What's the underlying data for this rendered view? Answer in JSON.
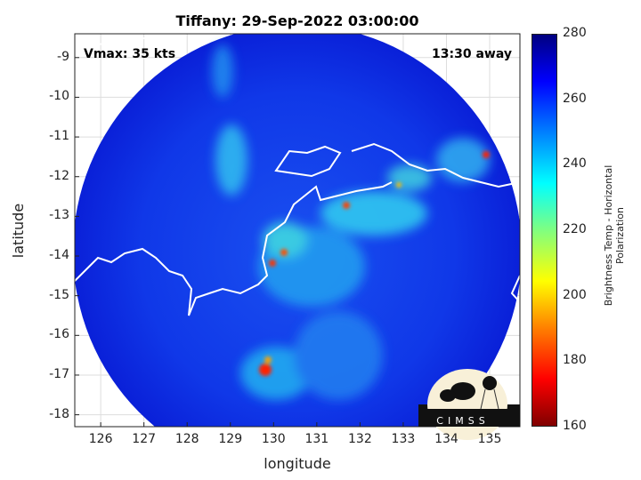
{
  "title": "Tiffany: 29-Sep-2022 03:00:00",
  "annotations": {
    "vmax": "Vmax: 35 kts",
    "distance": "13:30 away"
  },
  "xaxis": {
    "label": "longitude",
    "ticks": [
      "126",
      "127",
      "128",
      "129",
      "130",
      "131",
      "132",
      "133",
      "134",
      "135"
    ],
    "range": [
      125.4,
      135.7
    ]
  },
  "yaxis": {
    "label": "latitude",
    "ticks": [
      "-9",
      "-10",
      "-11",
      "-12",
      "-13",
      "-14",
      "-15",
      "-16",
      "-17",
      "-18"
    ],
    "range": [
      -18.3,
      -8.4
    ]
  },
  "colorbar": {
    "label": "Brightness Temp - Horizontal Polarization",
    "ticks": [
      "280",
      "260",
      "240",
      "220",
      "200",
      "180",
      "160"
    ],
    "range": [
      160,
      280
    ],
    "colormap": "jet"
  },
  "logo": {
    "text": "CIMSS"
  },
  "colors": {
    "background_scene": "#1030e0",
    "coastline": "#ffffff",
    "convection": "#ff2000"
  }
}
